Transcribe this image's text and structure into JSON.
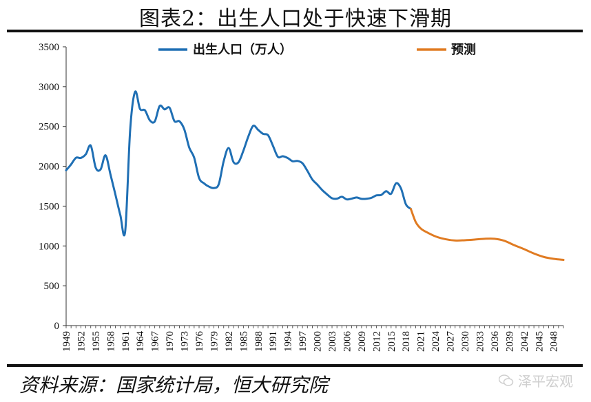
{
  "title": "图表2：出生人口处于快速下滑期",
  "source": "资料来源：国家统计局，恒大研究院",
  "watermark": "泽平宏观",
  "colors": {
    "series1": "#1f6fb4",
    "series2": "#e07b22"
  },
  "chart_data": {
    "type": "line",
    "xlabel": "",
    "ylabel": "",
    "ylim": [
      0,
      3500
    ],
    "yticks": [
      0,
      500,
      1000,
      1500,
      2000,
      2500,
      3000,
      3500
    ],
    "xlim": [
      1949,
      2050
    ],
    "xticks": [
      1949,
      1952,
      1955,
      1958,
      1961,
      1964,
      1967,
      1970,
      1973,
      1976,
      1979,
      1982,
      1985,
      1988,
      1991,
      1994,
      1997,
      2000,
      2003,
      2006,
      2009,
      2012,
      2015,
      2018,
      2021,
      2024,
      2027,
      2030,
      2033,
      2036,
      2039,
      2042,
      2045,
      2048
    ],
    "legend": "top",
    "series": [
      {
        "name": "出生人口（万人）",
        "color": "#1f6fb4",
        "x": [
          1949,
          1950,
          1951,
          1952,
          1953,
          1954,
          1955,
          1956,
          1957,
          1958,
          1959,
          1960,
          1961,
          1962,
          1963,
          1964,
          1965,
          1966,
          1967,
          1968,
          1969,
          1970,
          1971,
          1972,
          1973,
          1974,
          1975,
          1976,
          1977,
          1978,
          1979,
          1980,
          1981,
          1982,
          1983,
          1984,
          1985,
          1986,
          1987,
          1988,
          1989,
          1990,
          1991,
          1992,
          1993,
          1994,
          1995,
          1996,
          1997,
          1998,
          1999,
          2000,
          2001,
          2002,
          2003,
          2004,
          2005,
          2006,
          2007,
          2008,
          2009,
          2010,
          2011,
          2012,
          2013,
          2014,
          2015,
          2016,
          2017,
          2018,
          2019
        ],
        "y": [
          1950,
          2023,
          2107,
          2105,
          2151,
          2260,
          1984,
          1961,
          2138,
          1899,
          1647,
          1389,
          1187,
          2451,
          2934,
          2721,
          2704,
          2577,
          2563,
          2757,
          2715,
          2736,
          2567,
          2566,
          2463,
          2235,
          2109,
          1853,
          1786,
          1745,
          1727,
          1776,
          2064,
          2230,
          2052,
          2050,
          2196,
          2374,
          2508,
          2457,
          2407,
          2391,
          2258,
          2119,
          2126,
          2104,
          2063,
          2067,
          2038,
          1942,
          1834,
          1771,
          1702,
          1647,
          1599,
          1593,
          1617,
          1584,
          1594,
          1608,
          1591,
          1592,
          1604,
          1635,
          1640,
          1687,
          1655,
          1786,
          1723,
          1523,
          1465
        ]
      },
      {
        "name": "预测",
        "color": "#e07b22",
        "x": [
          2019,
          2020,
          2021,
          2022,
          2024,
          2026,
          2028,
          2030,
          2032,
          2034,
          2036,
          2038,
          2040,
          2042,
          2044,
          2046,
          2048,
          2050
        ],
        "y": [
          1465,
          1300,
          1220,
          1180,
          1120,
          1085,
          1068,
          1072,
          1080,
          1090,
          1090,
          1065,
          1010,
          960,
          905,
          862,
          838,
          825
        ]
      }
    ]
  }
}
